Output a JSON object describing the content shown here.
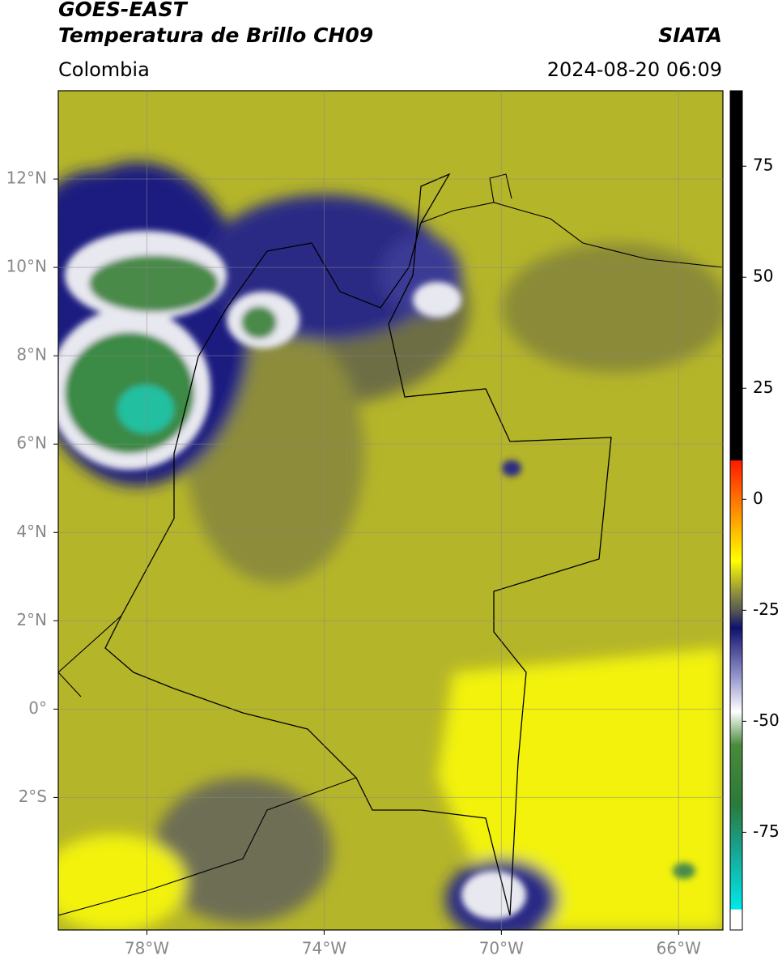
{
  "header": {
    "title": "GOES-EAST",
    "subtitle": "Temperatura de Brillo CH09",
    "region": "Colombia",
    "agency": "SIATA",
    "datetime": "2024-08-20 06:09"
  },
  "map": {
    "xlim": [
      -80,
      -65
    ],
    "ylim": [
      -5,
      14
    ],
    "xticks": [
      {
        "value": -78,
        "label": "78°W"
      },
      {
        "value": -74,
        "label": "74°W"
      },
      {
        "value": -70,
        "label": "70°W"
      },
      {
        "value": -66,
        "label": "66°W"
      }
    ],
    "yticks": [
      {
        "value": -2,
        "label": "2°S"
      },
      {
        "value": 0,
        "label": "0°"
      },
      {
        "value": 2,
        "label": "2°N"
      },
      {
        "value": 4,
        "label": "4°N"
      },
      {
        "value": 6,
        "label": "6°N"
      },
      {
        "value": 8,
        "label": "8°N"
      },
      {
        "value": 10,
        "label": "10°N"
      },
      {
        "value": 12,
        "label": "12°N"
      }
    ],
    "grid": true
  },
  "colorbar": {
    "lim": [
      -97,
      92
    ],
    "ticks": [
      75,
      50,
      25,
      0,
      -25,
      -50,
      -75
    ]
  }
}
